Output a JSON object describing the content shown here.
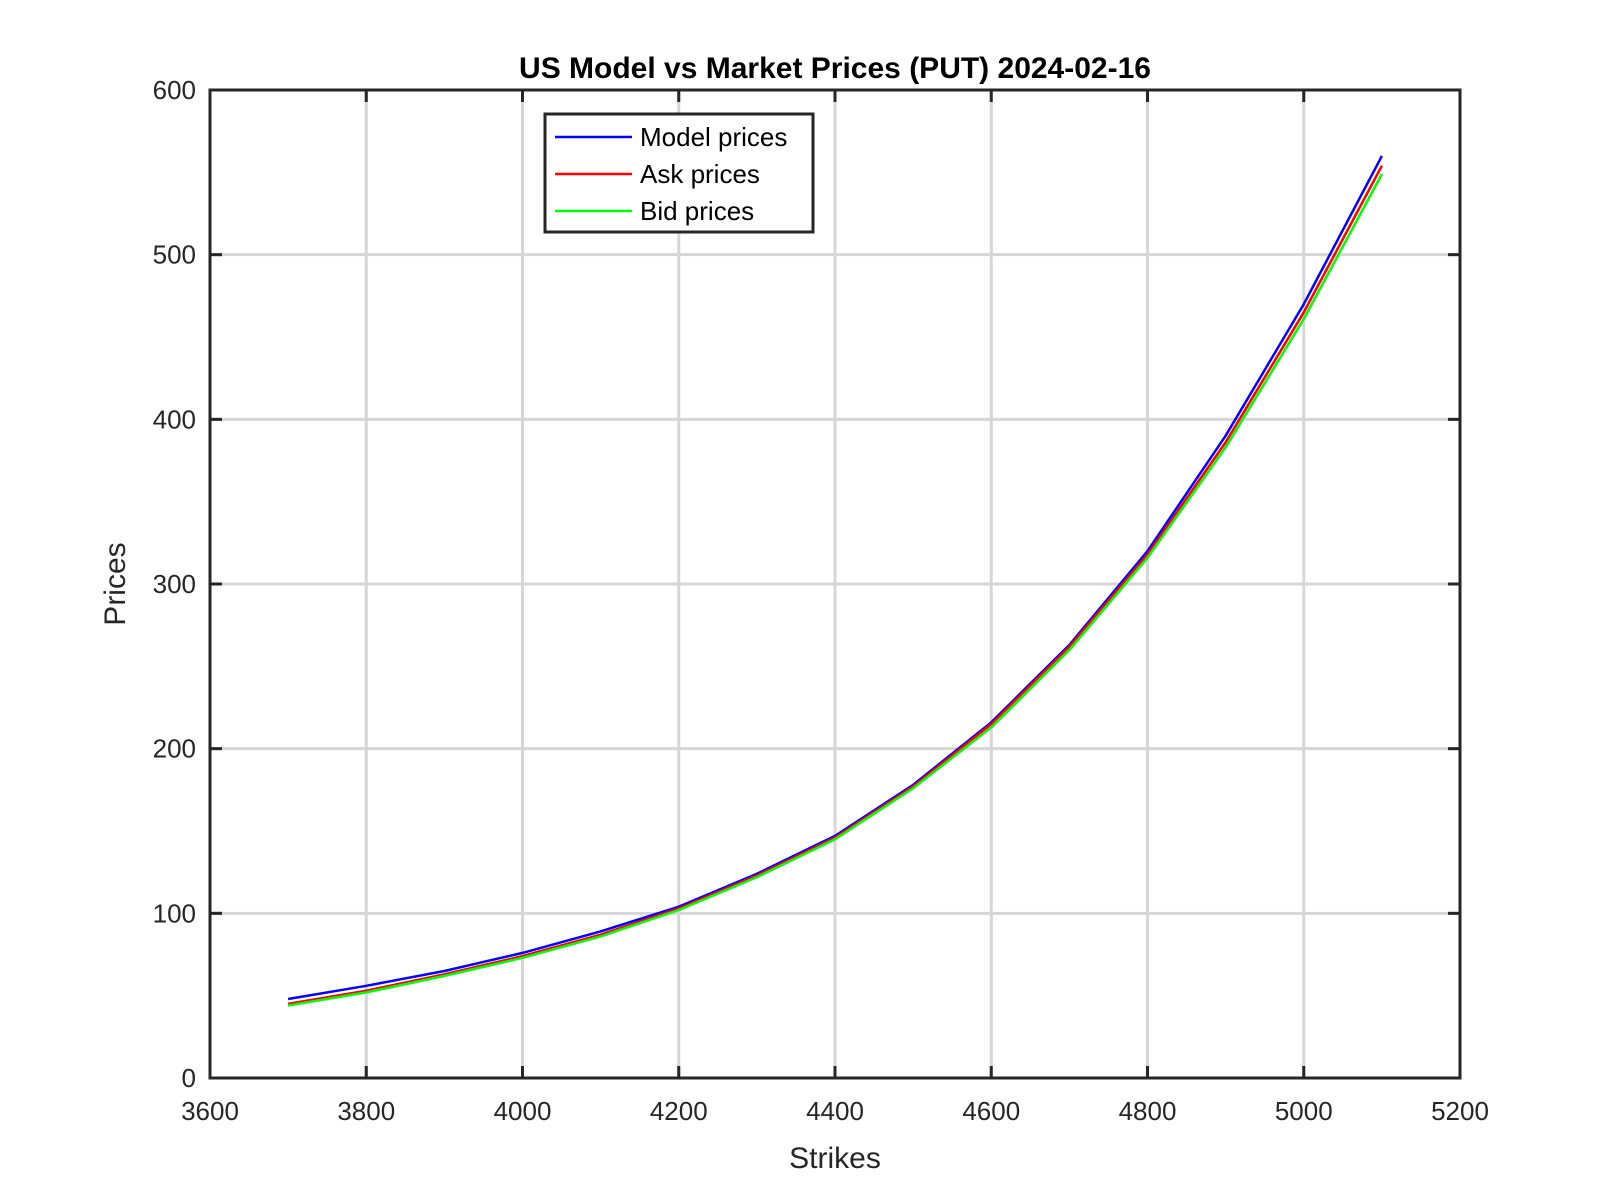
{
  "chart_data": {
    "type": "line",
    "title": "US Model vs Market Prices  (PUT) 2024-02-16",
    "xlabel": "Strikes",
    "ylabel": "Prices",
    "xlim": [
      3600,
      5200
    ],
    "ylim": [
      0,
      600
    ],
    "x_ticks": [
      3600,
      3800,
      4000,
      4200,
      4400,
      4600,
      4800,
      5000,
      5200
    ],
    "y_ticks": [
      0,
      100,
      200,
      300,
      400,
      500,
      600
    ],
    "grid": true,
    "legend_position": "top-left",
    "x": [
      3700,
      3800,
      3900,
      4000,
      4100,
      4200,
      4300,
      4400,
      4500,
      4600,
      4700,
      4800,
      4900,
      5000,
      5100
    ],
    "series": [
      {
        "name": "Model prices",
        "color": "#0000ff",
        "values": [
          48,
          56,
          65,
          76,
          89,
          104,
          124,
          147,
          178,
          216,
          263,
          320,
          390,
          470,
          560
        ]
      },
      {
        "name": "Ask prices",
        "color": "#ff0000",
        "values": [
          45,
          53,
          63,
          74,
          87,
          103,
          123,
          146,
          177,
          215,
          262,
          318,
          386,
          465,
          554
        ]
      },
      {
        "name": "Bid prices",
        "color": "#00ff00",
        "values": [
          44,
          52,
          62,
          73,
          86,
          102,
          122,
          145,
          176,
          213,
          260,
          316,
          383,
          461,
          549
        ]
      }
    ]
  }
}
